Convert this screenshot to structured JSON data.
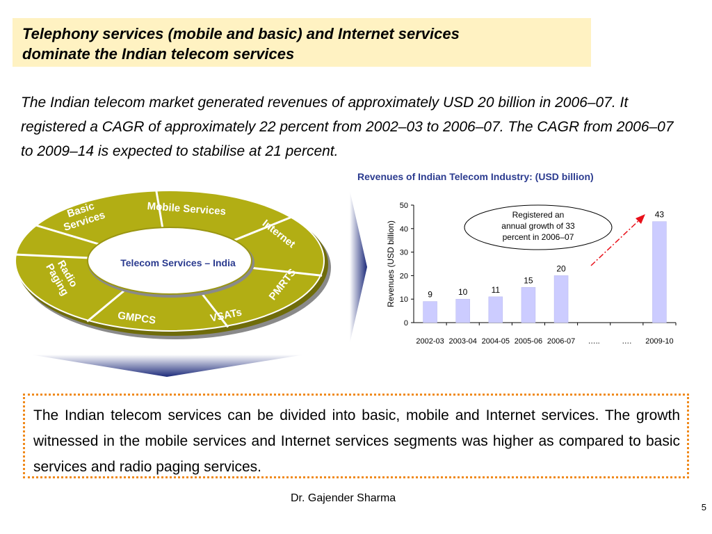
{
  "slide": {
    "title_line1": "Telephony services (mobile and basic) and Internet services",
    "title_line2": "dominate the Indian telecom services",
    "intro": "The Indian telecom market generated revenues of approximately USD 20 billion in 2006–07. It registered a CAGR of approximately 22 percent from 2002–03 to 2006–07. The CAGR from 2006–07 to 2009–14 is expected to stabilise at 21 percent.",
    "note": "The Indian telecom services can be divided into basic, mobile and Internet services. The growth witnessed in the mobile services and Internet services segments was higher as compared to basic services and radio paging services.",
    "author": "Dr. Gajender Sharma",
    "page_number": "5"
  },
  "diagram": {
    "center_label": "Telecom Services – India",
    "segments": [
      "Basic Services",
      "Mobile Services",
      "Internet",
      "PMRTS",
      "VSATs",
      "GMPCS",
      "Radio Paging"
    ],
    "ring_color": "#b2ae14",
    "shadow_color": "#8a8a8a",
    "arrow_color": "#1c2a7a"
  },
  "chart_data": {
    "type": "bar",
    "title": "Revenues of Indian Telecom Industry:  (USD billion)",
    "ylabel": "Revenues (USD billion)",
    "xlabel": "",
    "categories": [
      "2002-03",
      "2003-04",
      "2004-05",
      "2005-06",
      "2006-07",
      "…..",
      "….",
      "2009-10"
    ],
    "values": [
      9,
      10,
      11,
      15,
      20,
      null,
      null,
      43
    ],
    "data_labels": [
      "9",
      "10",
      "11",
      "15",
      "20",
      "",
      "",
      "43"
    ],
    "yticks": [
      "0",
      "10",
      "20",
      "30",
      "40",
      "50"
    ],
    "ylim": [
      0,
      50
    ],
    "bar_color": "#ccccff",
    "annotation": "Registered an annual growth of 33 percent in 2006–07",
    "annotation_arrow_color": "#e8101a"
  }
}
